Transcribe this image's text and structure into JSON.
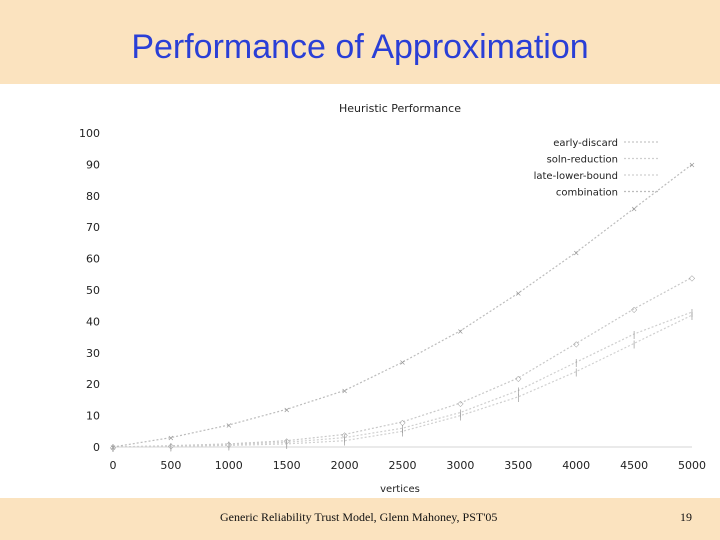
{
  "slide": {
    "title": "Performance of Approximation",
    "footer": "Generic Reliability Trust Model, Glenn Mahoney, PST'05",
    "page_number": "19"
  },
  "colors": {
    "background": "#fbe3bf",
    "title": "#2a3fd6",
    "early_discard": "#c8c8c8",
    "soln_reduction": "#cfcfcf",
    "late_lower_bound": "#d0d0d0",
    "combination": "#bcbcbc"
  },
  "chart_data": {
    "type": "line",
    "title": "Heuristic Performance",
    "xlabel": "vertices",
    "ylabel": "",
    "xlim": [
      0,
      5000
    ],
    "ylim": [
      0,
      100
    ],
    "x_ticks": [
      "0",
      "500",
      "1000",
      "1500",
      "2000",
      "2500",
      "3000",
      "3500",
      "4000",
      "4500",
      "5000"
    ],
    "y_ticks": [
      "0",
      "10",
      "20",
      "30",
      "40",
      "50",
      "60",
      "70",
      "80",
      "90",
      "100"
    ],
    "grid": false,
    "legend_position": "top-right",
    "x": [
      0,
      500,
      1000,
      1500,
      2000,
      2500,
      3000,
      3500,
      4000,
      4500,
      5000
    ],
    "series": [
      {
        "name": "early-discard",
        "values": [
          0,
          0.4,
          1,
          2,
          4,
          8,
          14,
          22,
          33,
          44,
          54
        ],
        "marker": "◇"
      },
      {
        "name": "soln-reduction",
        "values": [
          0,
          0.3,
          0.8,
          1.5,
          3,
          6,
          11,
          18,
          27,
          36,
          43
        ],
        "marker": "|"
      },
      {
        "name": "late-lower-bound",
        "values": [
          0,
          0.2,
          0.5,
          1,
          2,
          5,
          10,
          16,
          24,
          33,
          42
        ],
        "marker": "|"
      },
      {
        "name": "combination",
        "values": [
          0,
          3,
          7,
          12,
          18,
          27,
          37,
          49,
          62,
          76,
          90
        ],
        "marker": "×"
      }
    ]
  }
}
